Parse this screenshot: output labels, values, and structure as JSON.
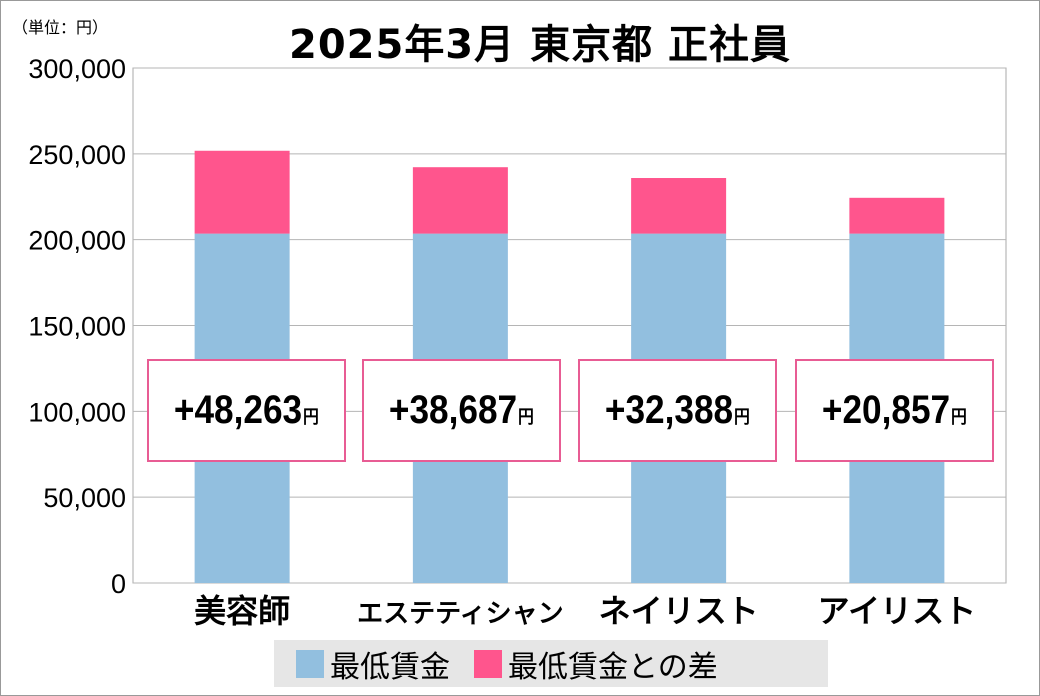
{
  "chart_data": {
    "type": "bar",
    "stacked": true,
    "title": "2025年3月 東京都 正社員",
    "unit_label": "（単位：円）",
    "categories": [
      "美容師",
      "エステティシャン",
      "ネイリスト",
      "アイリスト"
    ],
    "series": [
      {
        "name": "最低賃金",
        "color": "#92bfdf",
        "values": [
          203525,
          203525,
          203525,
          203525
        ]
      },
      {
        "name": "最低賃金との差",
        "color": "#ff558d",
        "values": [
          48263,
          38687,
          32388,
          20857
        ]
      }
    ],
    "annotations": [
      "+48,263",
      "+38,687",
      "+32,388",
      "+20,857"
    ],
    "annotation_unit": "円",
    "ylim": [
      0,
      300000
    ],
    "yticks": [
      0,
      50000,
      100000,
      150000,
      200000,
      250000,
      300000
    ],
    "ytick_labels": [
      "0",
      "50,000",
      "100,000",
      "150,000",
      "200,000",
      "250,000",
      "300,000"
    ],
    "grid": true,
    "legend_placement": "bottom"
  }
}
